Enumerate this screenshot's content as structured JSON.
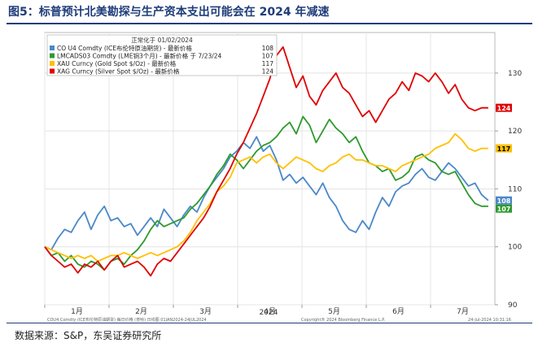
{
  "figure": {
    "title": "图5：标普预计北美勘探与生产资本支出可能会在 2024 年减速",
    "source": "数据来源：S&P，东吴证券研究所"
  },
  "chart_data": {
    "type": "line",
    "legend_header": "正常化于 01/02/2024",
    "legend_placement": "top-left",
    "x_tick_labels": [
      "1月",
      "2月",
      "3月",
      "4月",
      "5月",
      "6月",
      "7月"
    ],
    "year_label": "2024",
    "x_range": [
      0,
      204
    ],
    "ylim": [
      90,
      137
    ],
    "y_ticks": [
      90,
      100,
      110,
      120,
      130
    ],
    "footer_left": "COU4 Comdty (ICE布伦特原油期货) 每日价格 (普哈)  日线图 01JAN2024-24JUL2024",
    "footer_mid": "Copyright® 2024 Bloomberg Finance L.P.",
    "footer_right": "24-Jul-2024 10:31:16",
    "series": [
      {
        "name": "CO U4 Comdty (ICE布伦特原油期货)  - 最新价格",
        "last_value": "108",
        "last_label": "108",
        "color": "#4a88c9",
        "x": [
          0,
          3,
          6,
          9,
          12,
          15,
          18,
          21,
          24,
          27,
          30,
          33,
          36,
          39,
          42,
          45,
          48,
          51,
          54,
          57,
          60,
          63,
          66,
          69,
          72,
          75,
          78,
          81,
          84,
          87,
          90,
          93,
          96,
          99,
          102,
          105,
          108,
          111,
          114,
          117,
          120,
          123,
          126,
          129,
          132,
          135,
          138,
          141,
          144,
          147,
          150,
          153,
          156,
          159,
          162,
          165,
          168,
          171,
          174,
          177,
          180,
          183,
          186,
          189,
          192,
          195,
          198,
          201
        ],
        "values": [
          100.0,
          99.5,
          101.5,
          103.0,
          102.5,
          104.5,
          106.0,
          103.0,
          105.5,
          107.0,
          104.5,
          105.0,
          103.5,
          104.0,
          102.0,
          103.5,
          105.0,
          103.5,
          106.5,
          105.0,
          103.5,
          105.5,
          107.0,
          106.0,
          108.5,
          110.5,
          112.0,
          113.5,
          115.5,
          116.5,
          118.0,
          117.0,
          119.0,
          116.5,
          117.5,
          115.0,
          111.5,
          112.5,
          111.0,
          112.0,
          110.5,
          109.0,
          111.0,
          108.5,
          107.0,
          104.5,
          103.0,
          102.5,
          104.5,
          103.0,
          106.0,
          108.5,
          107.0,
          109.5,
          110.5,
          111.0,
          112.5,
          113.5,
          112.0,
          111.5,
          113.0,
          114.5,
          113.5,
          112.0,
          110.5,
          111.0,
          109.0,
          108.0
        ]
      },
      {
        "name": "LMCADS03 Comdty (LME铜3个月)  - 最新价格 于 7/23/24",
        "last_value": "107",
        "last_label": "107",
        "color": "#2e9a2e",
        "x": [
          0,
          3,
          6,
          9,
          12,
          15,
          18,
          21,
          24,
          27,
          30,
          33,
          36,
          39,
          42,
          45,
          48,
          51,
          54,
          57,
          60,
          63,
          66,
          69,
          72,
          75,
          78,
          81,
          84,
          87,
          90,
          93,
          96,
          99,
          102,
          105,
          108,
          111,
          114,
          117,
          120,
          123,
          126,
          129,
          132,
          135,
          138,
          141,
          144,
          147,
          150,
          153,
          156,
          159,
          162,
          165,
          168,
          171,
          174,
          177,
          180,
          183,
          186,
          189,
          192,
          195,
          198,
          201
        ],
        "values": [
          100.0,
          98.5,
          99.0,
          97.5,
          98.5,
          97.0,
          96.5,
          97.5,
          97.0,
          96.0,
          97.5,
          98.0,
          97.0,
          98.5,
          99.5,
          101.0,
          103.0,
          104.5,
          103.5,
          104.0,
          104.5,
          105.0,
          106.5,
          107.5,
          109.0,
          110.5,
          112.5,
          114.0,
          116.0,
          115.0,
          113.5,
          115.0,
          116.5,
          117.5,
          118.0,
          119.0,
          120.5,
          121.5,
          119.5,
          122.5,
          121.0,
          118.0,
          120.0,
          122.0,
          120.5,
          119.5,
          118.0,
          119.0,
          116.5,
          114.5,
          114.0,
          113.0,
          113.5,
          111.5,
          112.0,
          113.0,
          115.5,
          116.0,
          115.0,
          114.5,
          113.0,
          112.5,
          113.0,
          111.0,
          109.0,
          107.5,
          107.0,
          107.0
        ]
      },
      {
        "name": "XAU Curncy (Gold Spot  $/Oz)  - 最新价格",
        "last_value": "117",
        "last_label": "117",
        "color": "#ffc000",
        "x": [
          0,
          3,
          6,
          9,
          12,
          15,
          18,
          21,
          24,
          27,
          30,
          33,
          36,
          39,
          42,
          45,
          48,
          51,
          54,
          57,
          60,
          63,
          66,
          69,
          72,
          75,
          78,
          81,
          84,
          87,
          90,
          93,
          96,
          99,
          102,
          105,
          108,
          111,
          114,
          117,
          120,
          123,
          126,
          129,
          132,
          135,
          138,
          141,
          144,
          147,
          150,
          153,
          156,
          159,
          162,
          165,
          168,
          171,
          174,
          177,
          180,
          183,
          186,
          189,
          192,
          195,
          198,
          201
        ],
        "values": [
          100.0,
          99.5,
          99.0,
          98.5,
          98.0,
          98.5,
          98.0,
          98.5,
          97.5,
          98.0,
          98.5,
          98.5,
          99.0,
          98.5,
          98.0,
          98.5,
          99.0,
          98.5,
          99.0,
          99.5,
          100.0,
          101.0,
          102.5,
          104.5,
          106.0,
          107.5,
          109.5,
          110.5,
          112.0,
          114.5,
          115.0,
          115.5,
          114.5,
          115.5,
          116.0,
          114.5,
          113.5,
          114.5,
          115.5,
          115.0,
          114.5,
          113.5,
          113.0,
          114.0,
          114.5,
          115.5,
          116.0,
          115.0,
          115.0,
          114.5,
          114.0,
          114.0,
          113.5,
          113.0,
          114.0,
          114.5,
          115.0,
          115.5,
          116.0,
          117.0,
          117.5,
          118.0,
          119.5,
          118.5,
          117.0,
          116.5,
          117.0,
          117.0
        ]
      },
      {
        "name": "XAG Curncy (Silver Spot  $/Oz)  - 最新价格",
        "last_value": "124",
        "last_label": "124",
        "color": "#e00000",
        "x": [
          0,
          3,
          6,
          9,
          12,
          15,
          18,
          21,
          24,
          27,
          30,
          33,
          36,
          39,
          42,
          45,
          48,
          51,
          54,
          57,
          60,
          63,
          66,
          69,
          72,
          75,
          78,
          81,
          84,
          87,
          90,
          93,
          96,
          99,
          102,
          105,
          108,
          111,
          114,
          117,
          120,
          123,
          126,
          129,
          132,
          135,
          138,
          141,
          144,
          147,
          150,
          153,
          156,
          159,
          162,
          165,
          168,
          171,
          174,
          177,
          180,
          183,
          186,
          189,
          192,
          195,
          198,
          201
        ],
        "values": [
          100.0,
          98.5,
          97.5,
          96.5,
          97.0,
          95.5,
          97.0,
          96.5,
          97.5,
          96.0,
          97.5,
          98.5,
          96.5,
          97.0,
          97.5,
          96.5,
          95.0,
          97.0,
          98.0,
          97.5,
          99.0,
          100.5,
          102.0,
          103.5,
          105.0,
          107.0,
          109.5,
          111.5,
          113.5,
          116.0,
          118.0,
          120.5,
          123.0,
          126.0,
          129.0,
          133.0,
          134.5,
          131.0,
          127.5,
          129.5,
          126.0,
          124.5,
          127.0,
          128.5,
          130.0,
          127.5,
          126.5,
          124.5,
          122.5,
          123.5,
          121.5,
          123.5,
          125.5,
          126.5,
          128.5,
          127.0,
          130.0,
          129.5,
          128.5,
          130.0,
          128.5,
          126.5,
          128.0,
          125.5,
          124.0,
          123.5,
          124.0,
          124.0
        ]
      }
    ]
  }
}
